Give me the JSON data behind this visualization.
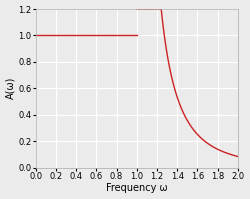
{
  "title": "",
  "xlabel": "Frequency ω",
  "ylabel": "A(ω)",
  "xlim": [
    0,
    2
  ],
  "ylim": [
    0,
    1.2
  ],
  "xticks": [
    0,
    0.2,
    0.4,
    0.6,
    0.8,
    1.0,
    1.2,
    1.4,
    1.6,
    1.8,
    2.0
  ],
  "yticks": [
    0,
    0.2,
    0.4,
    0.6,
    0.8,
    1.0,
    1.2
  ],
  "line_color": "#cc2222",
  "background_color": "#ebebeb",
  "grid_color": "#ffffff",
  "omega_cutoff": 1.0,
  "figsize": [
    2.5,
    1.99
  ],
  "dpi": 100
}
